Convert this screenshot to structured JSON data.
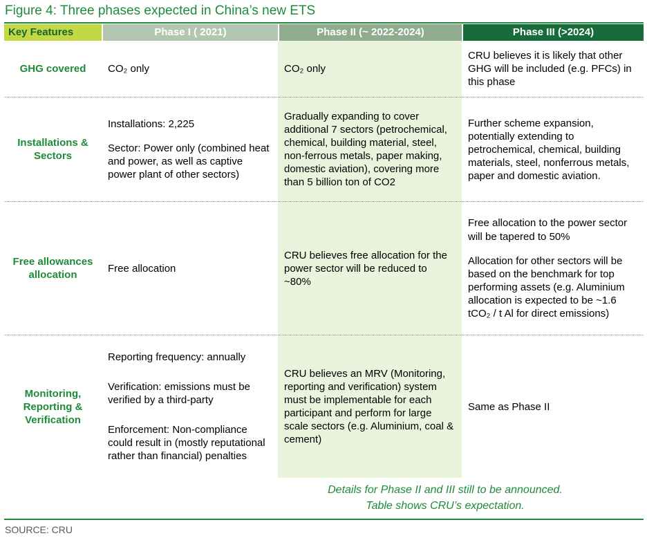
{
  "title": "Figure 4: Three phases expected in China’s new ETS",
  "header": {
    "key_features": "Key Features",
    "phase1": "Phase I ( 2021)",
    "phase2": "Phase II (~ 2022-2024)",
    "phase3": "Phase III (>2024)"
  },
  "rows": [
    {
      "label": "GHG covered",
      "phase1": [
        "CO₂ only"
      ],
      "phase2": [
        "CO₂ only"
      ],
      "phase3": [
        "CRU believes it is likely that other GHG will be included (e.g. PFCs) in this phase"
      ]
    },
    {
      "label": "Installations & Sectors",
      "phase1": [
        "Installations: 2,225",
        "Sector: Power only (combined heat and power, as well as captive power plant of other sectors)"
      ],
      "phase2": [
        "Gradually expanding to cover additional 7 sectors (petrochemical, chemical, building material, steel, non-ferrous metals, paper making, domestic aviation), covering more than 5 billion ton of CO2"
      ],
      "phase3": [
        "Further scheme expansion, potentially extending to petrochemical, chemical, building materials, steel, nonferrous metals, paper and domestic aviation."
      ]
    },
    {
      "label": "Free allowances allocation",
      "phase1": [
        "Free allocation"
      ],
      "phase2": [
        "CRU believes free allocation for the power sector will be reduced to ~80%"
      ],
      "phase3": [
        "Free allocation to the power sector will be tapered to 50%",
        "Allocation for other sectors will be based on the benchmark for top performing assets (e.g. Aluminium allocation is expected to be ~1.6 tCO₂ / t Al for direct emissions)"
      ]
    },
    {
      "label": "Monitoring, Reporting & Verification",
      "phase1": [
        "Reporting frequency: annually",
        "Verification: emissions must be verified by a third-party",
        "Enforcement: Non-compliance could result in (mostly reputational rather than financial) penalties"
      ],
      "phase2": [
        "CRU believes an MRV (Monitoring, reporting and verification) system must be implementable for each participant and perform for large scale sectors (e.g. Aluminium, coal & cement)"
      ],
      "phase3": [
        "Same as Phase II"
      ]
    }
  ],
  "footnote": [
    "Details for Phase II and III still to be announced.",
    "Table shows CRU’s expectation."
  ],
  "source": "SOURCE: CRU",
  "colors": {
    "accent_green": "#1f8a39",
    "key_features_header_bg": "#c3d845",
    "phase1_header_bg": "#b3c6b2",
    "phase2_header_bg": "#8fac8e",
    "phase3_header_bg": "#186b3a",
    "phase2_column_bg": "#eaf3dc",
    "source_text": "#595959"
  }
}
